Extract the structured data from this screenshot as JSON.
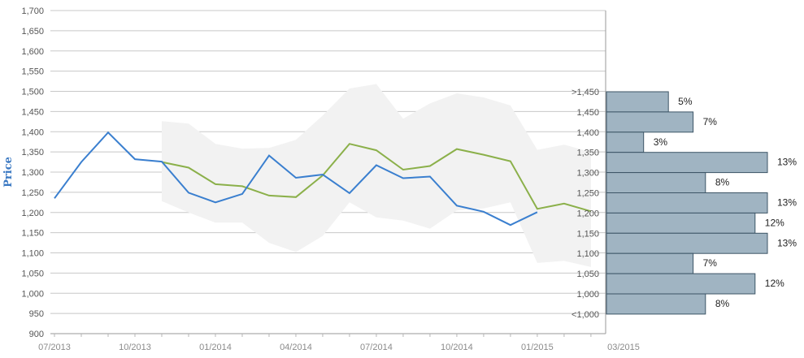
{
  "chart_data": {
    "type": "line",
    "title": "",
    "ylabel": "Price",
    "xlabel": "",
    "ylim": [
      900,
      1700
    ],
    "y_ticks": [
      "900",
      "950",
      "1,000",
      "1,050",
      "1,100",
      "1,150",
      "1,200",
      "1,250",
      "1,300",
      "1,350",
      "1,400",
      "1,450",
      "1,500",
      "1,550",
      "1,600",
      "1,650",
      "1,700"
    ],
    "x_ticks": [
      "07/2013",
      "10/2013",
      "01/2014",
      "04/2014",
      "07/2014",
      "10/2014",
      "01/2015",
      "03/2015"
    ],
    "grid": true,
    "series": [
      {
        "color": "#3a7fcf",
        "x": [
          "2013-07",
          "2013-08",
          "2013-09",
          "2013-10",
          "2013-11",
          "2013-12",
          "2014-01",
          "2014-02",
          "2014-03",
          "2014-04",
          "2014-05",
          "2014-06",
          "2014-07",
          "2014-08",
          "2014-09",
          "2014-10",
          "2014-11",
          "2014-12",
          "2015-01"
        ],
        "values": [
          1235,
          1325,
          1398,
          1332,
          1326,
          1249,
          1225,
          1246,
          1341,
          1286,
          1294,
          1248,
          1317,
          1285,
          1289,
          1217,
          1202,
          1169,
          1201
        ]
      },
      {
        "color": "#8bb04a",
        "x": [
          "2013-11",
          "2013-12",
          "2014-01",
          "2014-02",
          "2014-03",
          "2014-04",
          "2014-05",
          "2014-06",
          "2014-07",
          "2014-08",
          "2014-09",
          "2014-10",
          "2014-11",
          "2014-12",
          "2015-01",
          "2015-02",
          "2015-03"
        ],
        "values": [
          1325,
          1311,
          1270,
          1265,
          1242,
          1238,
          1292,
          1370,
          1354,
          1306,
          1315,
          1357,
          1343,
          1327,
          1209,
          1222,
          1203
        ]
      }
    ],
    "band": {
      "color": "#f2f2f2",
      "x": [
        "2013-11",
        "2013-12",
        "2014-01",
        "2014-02",
        "2014-03",
        "2014-04",
        "2014-05",
        "2014-06",
        "2014-07",
        "2014-08",
        "2014-09",
        "2014-10",
        "2014-11",
        "2014-12",
        "2015-01",
        "2015-02",
        "2015-03"
      ],
      "upper": [
        1426,
        1420,
        1370,
        1358,
        1360,
        1380,
        1440,
        1507,
        1518,
        1432,
        1470,
        1495,
        1485,
        1465,
        1355,
        1368,
        1350
      ],
      "lower": [
        1228,
        1200,
        1175,
        1175,
        1125,
        1102,
        1142,
        1225,
        1188,
        1180,
        1160,
        1205,
        1210,
        1225,
        1075,
        1080,
        1065
      ]
    },
    "distribution": {
      "color": "#a0b4c2",
      "edge_color": "#3d5566",
      "bins": [
        {
          "label": ">1,450",
          "pct": 5,
          "text": "5%"
        },
        {
          "label": "1,450",
          "pct": 7,
          "text": "7%"
        },
        {
          "label": "1,400",
          "pct": 3,
          "text": "3%"
        },
        {
          "label": "1,350",
          "pct": 13,
          "text": "13%"
        },
        {
          "label": "1,300",
          "pct": 8,
          "text": "8%"
        },
        {
          "label": "1,250",
          "pct": 13,
          "text": "13%"
        },
        {
          "label": "1,200",
          "pct": 12,
          "text": "12%"
        },
        {
          "label": "1,150",
          "pct": 13,
          "text": "13%"
        },
        {
          "label": "1,100",
          "pct": 7,
          "text": "7%"
        },
        {
          "label": "1,050",
          "pct": 12,
          "text": "12%"
        },
        {
          "label": "1,000",
          "pct": 8,
          "text": "8%"
        },
        {
          "label": "<1,000",
          "pct": null,
          "text": ""
        }
      ]
    }
  }
}
